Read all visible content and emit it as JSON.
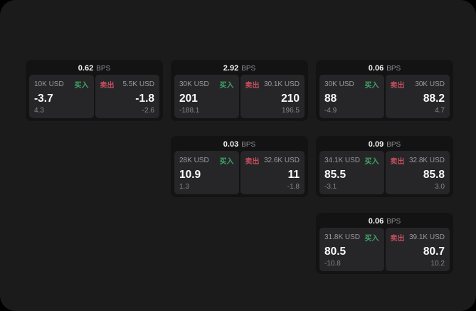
{
  "labels": {
    "unit": "BPS",
    "buy": "买入",
    "sell": "卖出"
  },
  "colors": {
    "background": "#000000",
    "panel": "#1b1b1c",
    "card": "#131314",
    "subpanel": "#262628",
    "buy_accent": "#40a368",
    "sell_accent": "#c44f5e",
    "value_text": "#fafafa",
    "muted_text": "#9a9a9e"
  },
  "cards": [
    {
      "bps": "0.62",
      "buy": {
        "amount": "10K USD",
        "price": "-3.7",
        "delta": "4.3"
      },
      "sell": {
        "amount": "5.5K USD",
        "price": "-1.8",
        "delta": "-2.6"
      }
    },
    {
      "bps": "2.92",
      "buy": {
        "amount": "30K USD",
        "price": "201",
        "delta": "-188.1"
      },
      "sell": {
        "amount": "30.1K USD",
        "price": "210",
        "delta": "196.5"
      }
    },
    {
      "bps": "0.06",
      "buy": {
        "amount": "30K USD",
        "price": "88",
        "delta": "-4.9"
      },
      "sell": {
        "amount": "30K USD",
        "price": "88.2",
        "delta": "4.7"
      }
    },
    {
      "bps": "0.03",
      "buy": {
        "amount": "28K USD",
        "price": "10.9",
        "delta": "1.3"
      },
      "sell": {
        "amount": "32.6K USD",
        "price": "11",
        "delta": "-1.8"
      }
    },
    {
      "bps": "0.09",
      "buy": {
        "amount": "34.1K USD",
        "price": "85.5",
        "delta": "-3.1"
      },
      "sell": {
        "amount": "32.8K USD",
        "price": "85.8",
        "delta": "3.0"
      }
    },
    {
      "bps": "0.06",
      "buy": {
        "amount": "31.8K USD",
        "price": "80.5",
        "delta": "-10.8"
      },
      "sell": {
        "amount": "39.1K USD",
        "price": "80.7",
        "delta": "10.2"
      }
    }
  ]
}
